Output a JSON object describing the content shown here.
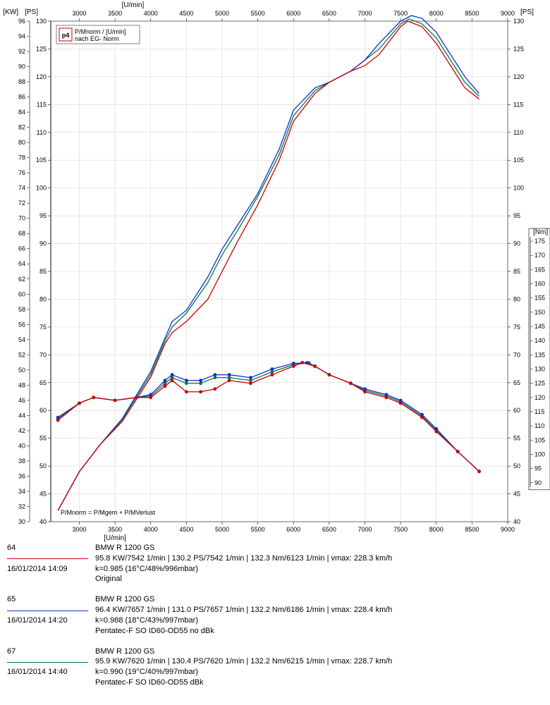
{
  "chart": {
    "type": "line",
    "x_axis": {
      "label_top": "[U/min]",
      "label_bottom": "[U/min]",
      "min": 2600,
      "max": 9000,
      "ticks": [
        3000,
        3500,
        4000,
        4500,
        5000,
        5500,
        6000,
        6500,
        7000,
        7500,
        8000,
        8500,
        9000
      ]
    },
    "y_left_kw": {
      "label": "[KW]",
      "min": 30,
      "max": 96,
      "ticks": [
        30,
        32,
        34,
        36,
        38,
        40,
        42,
        44,
        46,
        48,
        50,
        52,
        54,
        56,
        58,
        60,
        62,
        64,
        66,
        68,
        70,
        72,
        74,
        76,
        78,
        80,
        82,
        84,
        86,
        88,
        90,
        92,
        94,
        96
      ]
    },
    "y_left_ps": {
      "label": "[PS]",
      "min": 40,
      "max": 130,
      "ticks": [
        40,
        45,
        50,
        55,
        60,
        65,
        70,
        75,
        80,
        85,
        90,
        95,
        100,
        105,
        110,
        115,
        120,
        125,
        130
      ]
    },
    "y_right_ps": {
      "label": "[PS]",
      "min": 40,
      "max": 130,
      "ticks": [
        40,
        45,
        50,
        55,
        60,
        65,
        70,
        75,
        80,
        85,
        90,
        95,
        100,
        105,
        110,
        115,
        120,
        125,
        130
      ]
    },
    "y_right_nm": {
      "label": "[Nm]",
      "min": 88,
      "max": 178,
      "ticks": [
        90,
        95,
        100,
        105,
        110,
        115,
        120,
        125,
        130,
        135,
        140,
        145,
        150,
        155,
        160,
        165,
        170,
        175
      ]
    },
    "legend": {
      "icon_text": "p4",
      "line1": "P/Mnorm / [U/min]",
      "line2": "nach EG- Norm"
    },
    "formula_text": "P/Mnorm = P/Mgem + P/MVerlust",
    "background_color": "#ffffff",
    "grid_color": "#d0d0d0",
    "colors": {
      "run64": "#cc0000",
      "run65": "#1030cc",
      "run67": "#007a4d"
    },
    "line_width": 1.3,
    "marker_size": 2.4,
    "power_series": {
      "run64": [
        [
          2700,
          42
        ],
        [
          3000,
          49
        ],
        [
          3300,
          54
        ],
        [
          3600,
          58
        ],
        [
          4000,
          66
        ],
        [
          4200,
          72
        ],
        [
          4300,
          74
        ],
        [
          4500,
          76
        ],
        [
          4800,
          80
        ],
        [
          5000,
          85
        ],
        [
          5200,
          90
        ],
        [
          5500,
          97
        ],
        [
          5800,
          105
        ],
        [
          6000,
          112
        ],
        [
          6300,
          117
        ],
        [
          6500,
          119
        ],
        [
          6800,
          121
        ],
        [
          7000,
          122
        ],
        [
          7200,
          124
        ],
        [
          7500,
          129
        ],
        [
          7600,
          130
        ],
        [
          7800,
          129
        ],
        [
          8000,
          126
        ],
        [
          8200,
          122
        ],
        [
          8400,
          118
        ],
        [
          8600,
          116
        ]
      ],
      "run65": [
        [
          2700,
          42
        ],
        [
          3000,
          49
        ],
        [
          3300,
          54
        ],
        [
          3600,
          58.5
        ],
        [
          4000,
          67
        ],
        [
          4200,
          73
        ],
        [
          4300,
          76
        ],
        [
          4500,
          78
        ],
        [
          4800,
          84
        ],
        [
          5000,
          89
        ],
        [
          5200,
          93
        ],
        [
          5500,
          99
        ],
        [
          5800,
          107
        ],
        [
          6000,
          114
        ],
        [
          6300,
          118
        ],
        [
          6500,
          119
        ],
        [
          6800,
          121
        ],
        [
          7000,
          123
        ],
        [
          7200,
          126
        ],
        [
          7500,
          130
        ],
        [
          7650,
          131
        ],
        [
          7800,
          130.5
        ],
        [
          8000,
          128
        ],
        [
          8200,
          124
        ],
        [
          8400,
          120
        ],
        [
          8600,
          117
        ]
      ],
      "run67": [
        [
          2700,
          42
        ],
        [
          3000,
          49
        ],
        [
          3300,
          54
        ],
        [
          3600,
          58.3
        ],
        [
          4000,
          66.5
        ],
        [
          4200,
          72.5
        ],
        [
          4300,
          75
        ],
        [
          4500,
          77.5
        ],
        [
          4800,
          83
        ],
        [
          5000,
          88
        ],
        [
          5200,
          92
        ],
        [
          5500,
          98.5
        ],
        [
          5800,
          106
        ],
        [
          6000,
          113
        ],
        [
          6300,
          117.5
        ],
        [
          6500,
          119
        ],
        [
          6800,
          121
        ],
        [
          7000,
          123
        ],
        [
          7200,
          125
        ],
        [
          7500,
          129.5
        ],
        [
          7620,
          130.4
        ],
        [
          7800,
          129.5
        ],
        [
          8000,
          127
        ],
        [
          8200,
          123
        ],
        [
          8400,
          119
        ],
        [
          8600,
          116.5
        ]
      ]
    },
    "torque_series": {
      "run64": [
        [
          2700,
          112
        ],
        [
          3000,
          118
        ],
        [
          3200,
          120
        ],
        [
          3500,
          119
        ],
        [
          3800,
          120
        ],
        [
          4000,
          120
        ],
        [
          4200,
          124
        ],
        [
          4300,
          126
        ],
        [
          4500,
          122
        ],
        [
          4700,
          122
        ],
        [
          4900,
          123
        ],
        [
          5100,
          126
        ],
        [
          5400,
          125
        ],
        [
          5700,
          128
        ],
        [
          6000,
          131
        ],
        [
          6123,
          132.3
        ],
        [
          6300,
          131
        ],
        [
          6500,
          128
        ],
        [
          6800,
          125
        ],
        [
          7000,
          122
        ],
        [
          7300,
          120
        ],
        [
          7500,
          118
        ],
        [
          7800,
          113
        ],
        [
          8000,
          108
        ],
        [
          8300,
          101
        ],
        [
          8600,
          94
        ]
      ],
      "run65": [
        [
          2700,
          113
        ],
        [
          3000,
          118
        ],
        [
          3200,
          120
        ],
        [
          3500,
          119
        ],
        [
          3800,
          120
        ],
        [
          4000,
          121
        ],
        [
          4200,
          126
        ],
        [
          4300,
          128
        ],
        [
          4500,
          126
        ],
        [
          4700,
          126
        ],
        [
          4900,
          128
        ],
        [
          5100,
          128
        ],
        [
          5400,
          127
        ],
        [
          5700,
          130
        ],
        [
          6000,
          132
        ],
        [
          6186,
          132.2
        ],
        [
          6300,
          131
        ],
        [
          6500,
          128
        ],
        [
          6800,
          125
        ],
        [
          7000,
          123
        ],
        [
          7300,
          121
        ],
        [
          7500,
          119
        ],
        [
          7800,
          114
        ],
        [
          8000,
          109
        ],
        [
          8300,
          101
        ],
        [
          8600,
          94
        ]
      ],
      "run67": [
        [
          2700,
          112.5
        ],
        [
          3000,
          118
        ],
        [
          3200,
          120
        ],
        [
          3500,
          119
        ],
        [
          3800,
          120
        ],
        [
          4000,
          120.5
        ],
        [
          4200,
          125
        ],
        [
          4300,
          127
        ],
        [
          4500,
          125
        ],
        [
          4700,
          125
        ],
        [
          4900,
          127
        ],
        [
          5100,
          127
        ],
        [
          5400,
          126
        ],
        [
          5700,
          129
        ],
        [
          6000,
          131.5
        ],
        [
          6215,
          132.2
        ],
        [
          6300,
          131
        ],
        [
          6500,
          128
        ],
        [
          6800,
          125
        ],
        [
          7000,
          122.5
        ],
        [
          7300,
          120.5
        ],
        [
          7500,
          118.5
        ],
        [
          7800,
          113.5
        ],
        [
          8000,
          108.5
        ],
        [
          8300,
          101
        ],
        [
          8600,
          94
        ]
      ]
    }
  },
  "runs": [
    {
      "id": "64",
      "timestamp": "16/01/2014  14:09",
      "model": "BMW R 1200 GS",
      "color": "#cc0000",
      "line1": "95.8 KW/7542 1/min  |  130.2 PS/7542 1/min  |  132.3 Nm/6123 1/min | vmax: 228.3 km/h",
      "line2": "k=0.985 (16°C/48%/996mbar)",
      "line3": "Original"
    },
    {
      "id": "65",
      "timestamp": "16/01/2014  14:20",
      "model": "BMW R 1200 GS",
      "color": "#1030cc",
      "line1": "96.4 KW/7657 1/min  |  131.0 PS/7657 1/min  |  132.2 Nm/6186 1/min | vmax: 228.4 km/h",
      "line2": "k=0.988 (18°C/43%/997mbar)",
      "line3": "Pentatec-F SO ID60-OD55 no dBk"
    },
    {
      "id": "67",
      "timestamp": "16/01/2014  14:40",
      "model": "BMW R 1200 GS",
      "color": "#007a4d",
      "line1": "95.9 KW/7620 1/min  |  130.4 PS/7620 1/min  |  132.2 Nm/6215 1/min | vmax: 228.7 km/h",
      "line2": "k=0.990 (19°C/40%/997mbar)",
      "line3": "Pentatec-F SO ID60-OD55 dBk"
    }
  ]
}
